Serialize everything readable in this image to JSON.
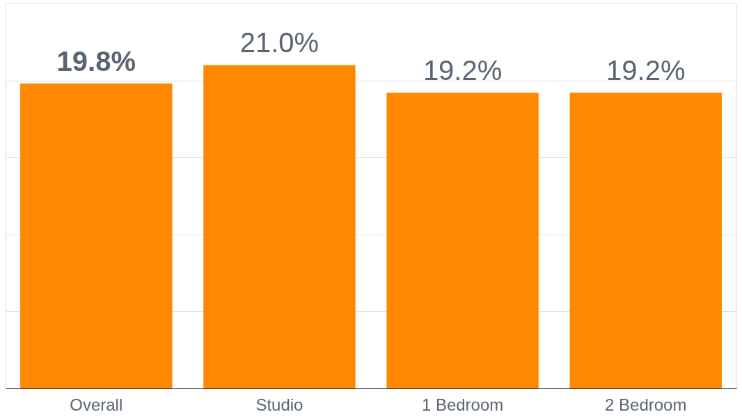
{
  "chart_data": {
    "type": "bar",
    "categories": [
      "Overall",
      "Studio",
      "1 Bedroom",
      "2 Bedroom"
    ],
    "values": [
      19.8,
      21.0,
      19.2,
      19.2
    ],
    "value_labels": [
      "19.8%",
      "21.0%",
      "19.2%",
      "19.2%"
    ],
    "color": "#ff8800",
    "ylim": [
      0,
      25
    ],
    "yticks": [
      {
        "value": 0,
        "label": null
      },
      {
        "value": 5,
        "label": null
      },
      {
        "value": 10,
        "label": null
      },
      {
        "value": 15,
        "label": null
      },
      {
        "value": 20,
        "label": null
      },
      {
        "value": 25,
        "label": null
      }
    ],
    "grid": "y",
    "tick_labels": "x"
  }
}
